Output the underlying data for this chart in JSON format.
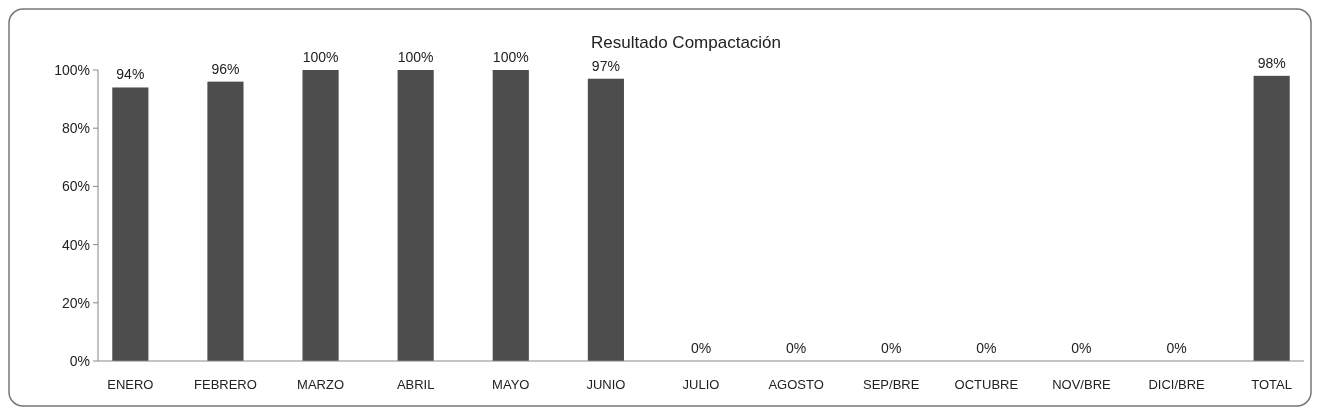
{
  "chart_data": {
    "type": "bar",
    "title": "Resultado Compactación",
    "categories": [
      "ENERO",
      "FEBRERO",
      "MARZO",
      "ABRIL",
      "MAYO",
      "JUNIO",
      "JULIO",
      "AGOSTO",
      "SEP/BRE",
      "OCTUBRE",
      "NOV/BRE",
      "DICI/BRE",
      "TOTAL"
    ],
    "values": [
      94,
      96,
      100,
      100,
      100,
      97,
      0,
      0,
      0,
      0,
      0,
      0,
      98
    ],
    "value_labels": [
      "94%",
      "96%",
      "100%",
      "100%",
      "100%",
      "97%",
      "0%",
      "0%",
      "0%",
      "0%",
      "0%",
      "0%",
      "98%"
    ],
    "color": "#4d4d4d",
    "ylim": [
      0,
      100
    ],
    "yticks": [
      {
        "value": 0,
        "label": "0%"
      },
      {
        "value": 20,
        "label": "20%"
      },
      {
        "value": 40,
        "label": "40%"
      },
      {
        "value": 60,
        "label": "60%"
      },
      {
        "value": 80,
        "label": "80%"
      },
      {
        "value": 100,
        "label": "100%"
      }
    ],
    "grid": false
  }
}
